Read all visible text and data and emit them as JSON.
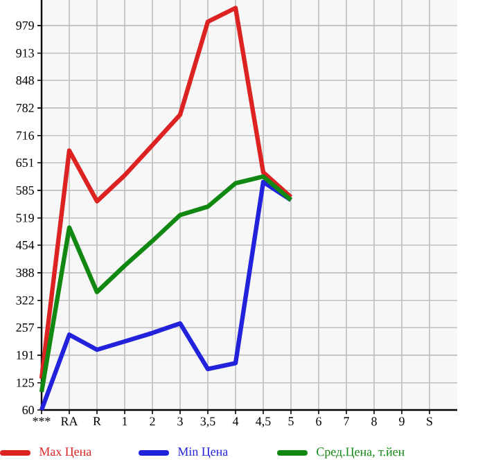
{
  "chart_data": {
    "type": "line",
    "categories": [
      "***",
      "RA",
      "R",
      "1",
      "2",
      "3",
      "3,5",
      "4",
      "4,5",
      "5",
      "6",
      "7",
      "8",
      "9",
      "S"
    ],
    "series": [
      {
        "name": "Max Цена",
        "color": "#dd2222",
        "values": [
          135,
          680,
          559,
          621,
          693,
          766,
          988,
          1021,
          628,
          569,
          null,
          null,
          null,
          null,
          null
        ]
      },
      {
        "name": "Min Цена",
        "color": "#2222dd",
        "values": [
          60,
          240,
          204,
          224,
          244,
          267,
          158,
          172,
          605,
          562,
          null,
          null,
          null,
          null,
          null
        ]
      },
      {
        "name": "Сред.Цена, т.йен",
        "color": "#118811",
        "values": [
          103,
          496,
          342,
          405,
          464,
          526,
          546,
          602,
          618,
          562,
          null,
          null,
          null,
          null,
          null
        ]
      }
    ],
    "ylim": [
      60,
      1040
    ],
    "yticks": [
      60,
      125,
      191,
      257,
      322,
      388,
      454,
      519,
      585,
      651,
      716,
      782,
      848,
      913,
      979
    ],
    "grid": true,
    "legend": "bottom"
  }
}
